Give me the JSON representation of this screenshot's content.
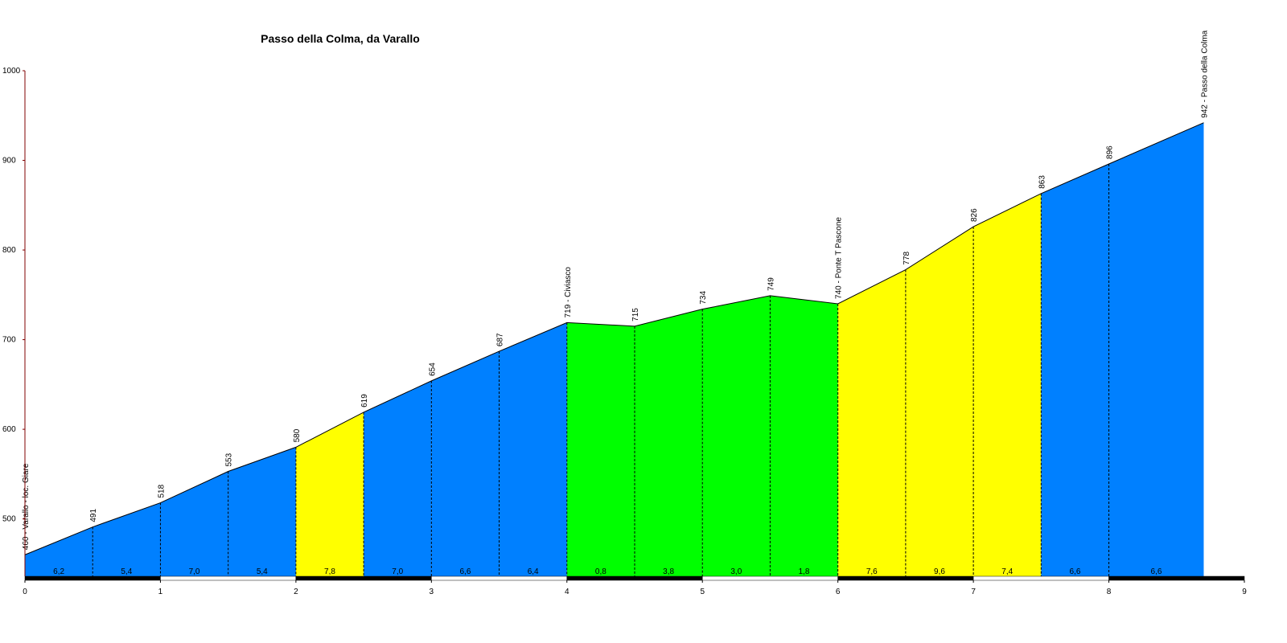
{
  "chart_data": {
    "type": "elevation-profile",
    "title": "Passo della Colma, da Varallo",
    "x": [
      0,
      0.5,
      1,
      1.5,
      2,
      2.5,
      3,
      3.5,
      4,
      4.5,
      5,
      5.5,
      6,
      6.5,
      7,
      7.5,
      8,
      8.7
    ],
    "values": [
      460,
      491,
      518,
      553,
      580,
      619,
      654,
      687,
      719,
      715,
      734,
      749,
      740,
      778,
      826,
      863,
      896,
      942
    ],
    "point_labels": [
      "460 - Varallo - loc. Giare",
      "491",
      "518",
      "553",
      "580",
      "619",
      "654",
      "687",
      "719 - Civiasco",
      "715",
      "734",
      "749",
      "740 - Ponte T Pascone",
      "778",
      "826",
      "863",
      "896",
      "942 - Passo della Colma"
    ],
    "grades": [
      6.2,
      5.4,
      7.0,
      5.4,
      7.8,
      7.0,
      6.6,
      6.4,
      0.8,
      3.8,
      3.0,
      1.8,
      7.6,
      9.6,
      7.4,
      6.6,
      6.6
    ],
    "grade_labels": [
      "6,2",
      "5,4",
      "7,0",
      "5,4",
      "7,8",
      "7,0",
      "6,6",
      "6,4",
      "0,8",
      "3,8",
      "3,0",
      "1,8",
      "7,6",
      "9,6",
      "7,4",
      "6,6",
      "6,6"
    ],
    "segment_colors": [
      "#0080ff",
      "#0080ff",
      "#0080ff",
      "#0080ff",
      "#ffff00",
      "#0080ff",
      "#0080ff",
      "#0080ff",
      "#00ff00",
      "#00ff00",
      "#00ff00",
      "#00ff00",
      "#ffff00",
      "#ffff00",
      "#ffff00",
      "#0080ff",
      "#0080ff"
    ],
    "xlim": [
      0,
      9
    ],
    "xticks": [
      0,
      1,
      2,
      3,
      4,
      5,
      6,
      7,
      8,
      9
    ],
    "ylim": [
      436,
      1000
    ],
    "yticks": [
      500,
      600,
      700,
      800,
      900,
      1000
    ]
  }
}
